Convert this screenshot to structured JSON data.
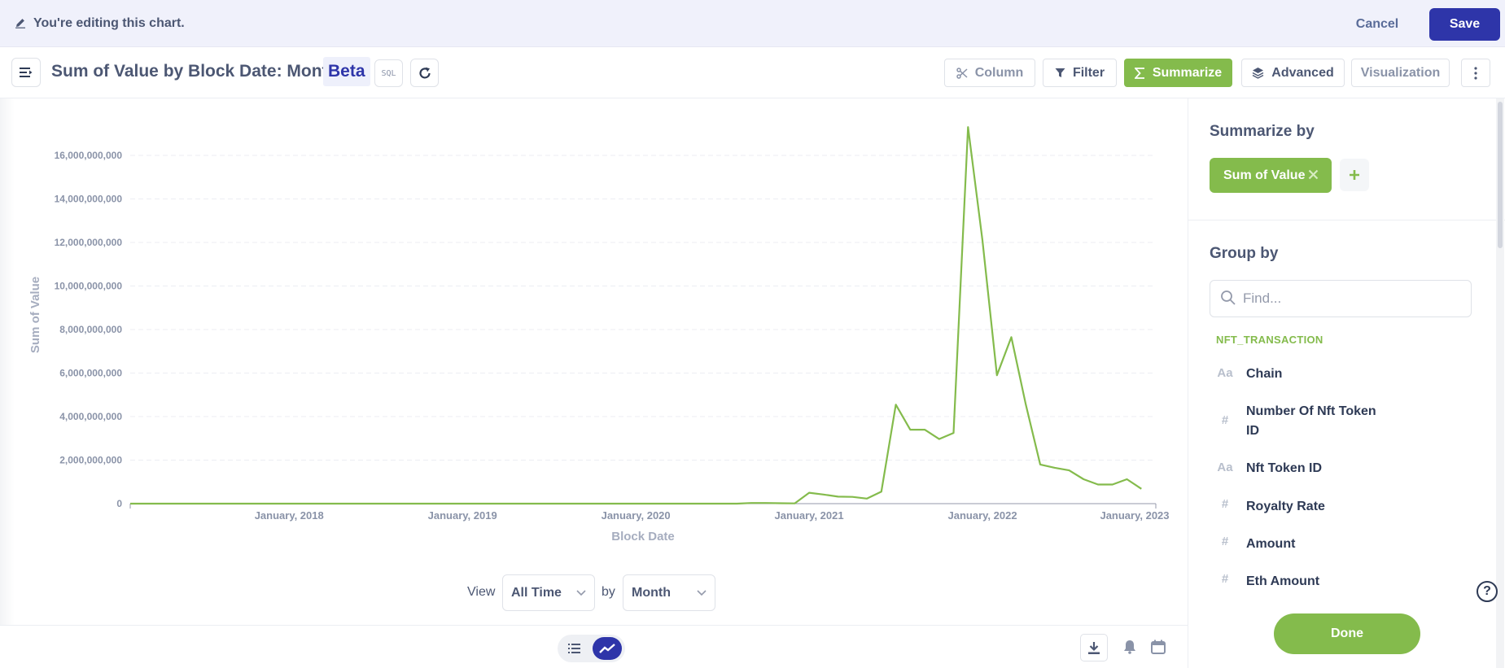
{
  "edit_bar": {
    "message": "You're editing this chart.",
    "cancel_label": "Cancel",
    "save_label": "Save"
  },
  "header": {
    "title": "Sum of Value by Block Date: Month",
    "beta": "Beta",
    "sql_label": "SQL",
    "toolbar": {
      "column": "Column",
      "filter": "Filter",
      "summarize": "Summarize",
      "advanced": "Advanced",
      "visualization": "Visualization"
    }
  },
  "colors": {
    "accent": "#2e35a9",
    "summarize_green": "#84bb4c",
    "line": "#84bb4c",
    "text": "#4c5773"
  },
  "chart_data": {
    "type": "line",
    "xlabel": "Block Date",
    "ylabel": "Sum of Value",
    "ylim": [
      0,
      16000000000
    ],
    "yticks": [
      0,
      2000000000,
      4000000000,
      6000000000,
      8000000000,
      10000000000,
      12000000000,
      14000000000,
      16000000000
    ],
    "ytick_labels": [
      "0",
      "2,000,000,000",
      "4,000,000,000",
      "6,000,000,000",
      "8,000,000,000",
      "10,000,000,000",
      "12,000,000,000",
      "14,000,000,000",
      "16,000,000,000"
    ],
    "xticks": [
      "2018-01",
      "2019-01",
      "2020-01",
      "2021-01",
      "2022-01",
      "2023-01"
    ],
    "xtick_labels": [
      "January, 2018",
      "January, 2019",
      "January, 2020",
      "January, 2021",
      "January, 2022",
      "January, 2023"
    ],
    "xlim": [
      "2017-02",
      "2023-01"
    ],
    "grid": "horizontal dashed",
    "series": [
      {
        "color": "#84bb4c",
        "points": [
          {
            "x": "2017-02",
            "y": 0
          },
          {
            "x": "2019-06",
            "y": 0
          },
          {
            "x": "2020-08",
            "y": 0
          },
          {
            "x": "2020-09",
            "y": 30000000
          },
          {
            "x": "2020-10",
            "y": 30000000
          },
          {
            "x": "2020-11",
            "y": 20000000
          },
          {
            "x": "2020-12",
            "y": 10000000
          },
          {
            "x": "2021-01",
            "y": 500000000
          },
          {
            "x": "2021-02",
            "y": 420000000
          },
          {
            "x": "2021-03",
            "y": 320000000
          },
          {
            "x": "2021-04",
            "y": 310000000
          },
          {
            "x": "2021-05",
            "y": 230000000
          },
          {
            "x": "2021-06",
            "y": 550000000
          },
          {
            "x": "2021-07",
            "y": 4550000000
          },
          {
            "x": "2021-08",
            "y": 3400000000
          },
          {
            "x": "2021-09",
            "y": 3400000000
          },
          {
            "x": "2021-10",
            "y": 2970000000
          },
          {
            "x": "2021-11",
            "y": 3250000000
          },
          {
            "x": "2021-12",
            "y": 17300000000
          },
          {
            "x": "2022-01",
            "y": 12100000000
          },
          {
            "x": "2022-02",
            "y": 5900000000
          },
          {
            "x": "2022-03",
            "y": 7650000000
          },
          {
            "x": "2022-04",
            "y": 4550000000
          },
          {
            "x": "2022-05",
            "y": 1800000000
          },
          {
            "x": "2022-06",
            "y": 1650000000
          },
          {
            "x": "2022-07",
            "y": 1530000000
          },
          {
            "x": "2022-08",
            "y": 1120000000
          },
          {
            "x": "2022-09",
            "y": 880000000
          },
          {
            "x": "2022-10",
            "y": 880000000
          },
          {
            "x": "2022-11",
            "y": 1120000000
          },
          {
            "x": "2022-12",
            "y": 680000000
          }
        ]
      }
    ]
  },
  "view_controls": {
    "view_label": "View",
    "time_range": "All Time",
    "by_label": "by",
    "unit": "Month"
  },
  "footer": {
    "icons": [
      "table-icon",
      "line-chart-icon",
      "download-icon",
      "bell-icon",
      "calendar-icon"
    ]
  },
  "panel": {
    "summarize_title": "Summarize by",
    "summarize_chip": "Sum of Value",
    "group_title": "Group by",
    "search_placeholder": "Find...",
    "table_name": "NFT_TRANSACTION",
    "fields": [
      {
        "type": "Aa",
        "label": "Chain"
      },
      {
        "type": "#",
        "label": "Number Of Nft Token ID"
      },
      {
        "type": "Aa",
        "label": "Nft Token ID"
      },
      {
        "type": "#",
        "label": "Royalty Rate"
      },
      {
        "type": "#",
        "label": "Amount"
      },
      {
        "type": "#",
        "label": "Eth Amount"
      }
    ],
    "done_label": "Done"
  },
  "help_label": "?"
}
